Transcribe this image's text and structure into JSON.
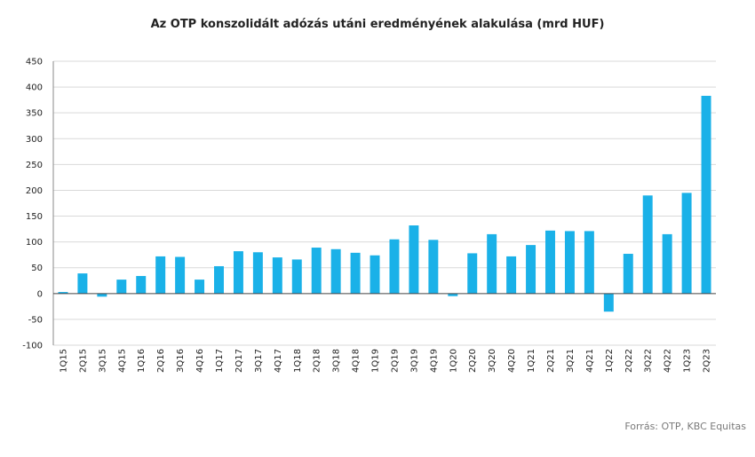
{
  "chart_data": {
    "type": "bar",
    "title": "Az OTP konszolidált adózás utáni eredményének alakulása (mrd HUF)",
    "source": "Forrás: OTP, KBC Equitas",
    "categories": [
      "1Q15",
      "2Q15",
      "3Q15",
      "4Q15",
      "1Q16",
      "2Q16",
      "3Q16",
      "4Q16",
      "1Q17",
      "2Q17",
      "3Q17",
      "4Q17",
      "1Q18",
      "2Q18",
      "3Q18",
      "4Q18",
      "1Q19",
      "2Q19",
      "3Q19",
      "4Q19",
      "1Q20",
      "2Q20",
      "3Q20",
      "4Q20",
      "1Q21",
      "2Q21",
      "3Q21",
      "4Q21",
      "1Q22",
      "2Q22",
      "3Q22",
      "4Q22",
      "1Q23",
      "2Q23"
    ],
    "values": [
      3,
      39,
      -6,
      27,
      34,
      72,
      71,
      27,
      53,
      82,
      80,
      70,
      66,
      89,
      86,
      79,
      74,
      105,
      132,
      104,
      -5,
      78,
      115,
      72,
      94,
      122,
      121,
      121,
      -35,
      77,
      190,
      115,
      195,
      383
    ],
    "ylim": [
      -100,
      450
    ],
    "yticks": [
      -100,
      -50,
      0,
      50,
      100,
      150,
      200,
      250,
      300,
      350,
      400,
      450
    ],
    "xlabel": "",
    "ylabel": "",
    "grid": true,
    "bar_color": "#1ab1e8"
  }
}
